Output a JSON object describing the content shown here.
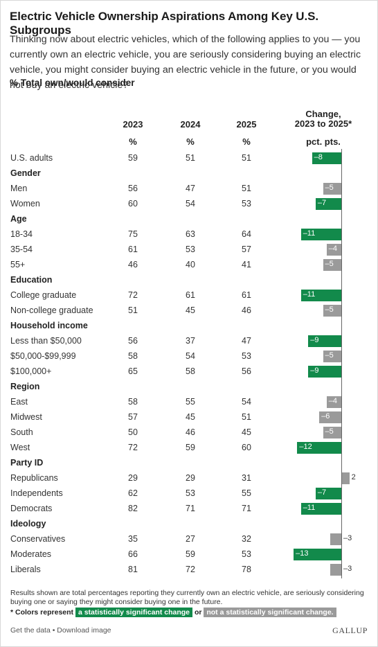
{
  "title": "Electric Vehicle Ownership Aspirations Among Key U.S. Subgroups",
  "question": "Thinking now about electric vehicles, which of the following applies to you — you currently own an electric vehicle, you are seriously considering buying an electric vehicle, you might consider buying an electric vehicle in the future, or you would not buy an electric vehicle?",
  "measure": "% Total own/would consider",
  "colors": {
    "significant": "#128a4b",
    "not_significant": "#9a9a9a"
  },
  "footnote": "Results shown are total percentages reporting they currently own an electric vehicle, are seriously considering buying one or saying they might consider buying one in the future.",
  "legend": {
    "prefix": "* Colors represent",
    "significant_label": "a statistically significant change",
    "joiner": "or",
    "not_significant_label": "not a statistically significant change."
  },
  "footer": {
    "links": "Get the data • Download image",
    "brand": "GALLUP"
  },
  "chart_data": {
    "type": "table",
    "columns": [
      "2023",
      "2024",
      "2025"
    ],
    "unit_row": [
      "%",
      "%",
      "%"
    ],
    "change_header": [
      "Change,",
      "2023 to 2025*"
    ],
    "change_unit": "pct. pts.",
    "rows": [
      {
        "label": "U.S. adults",
        "values": [
          59,
          51,
          51
        ],
        "change": -8,
        "change_label": "–8",
        "significant": true
      },
      {
        "group": "Gender"
      },
      {
        "label": "Men",
        "values": [
          56,
          47,
          51
        ],
        "change": -5,
        "change_label": "–5",
        "significant": false
      },
      {
        "label": "Women",
        "values": [
          60,
          54,
          53
        ],
        "change": -7,
        "change_label": "–7",
        "significant": true
      },
      {
        "group": "Age"
      },
      {
        "label": "18-34",
        "values": [
          75,
          63,
          64
        ],
        "change": -11,
        "change_label": "–11",
        "significant": true
      },
      {
        "label": "35-54",
        "values": [
          61,
          53,
          57
        ],
        "change": -4,
        "change_label": "–4",
        "significant": false
      },
      {
        "label": "55+",
        "values": [
          46,
          40,
          41
        ],
        "change": -5,
        "change_label": "–5",
        "significant": false
      },
      {
        "group": "Education"
      },
      {
        "label": "College graduate",
        "values": [
          72,
          61,
          61
        ],
        "change": -11,
        "change_label": "–11",
        "significant": true
      },
      {
        "label": "Non-college graduate",
        "values": [
          51,
          45,
          46
        ],
        "change": -5,
        "change_label": "–5",
        "significant": false
      },
      {
        "group": "Household income"
      },
      {
        "label": "Less than $50,000",
        "values": [
          56,
          37,
          47
        ],
        "change": -9,
        "change_label": "–9",
        "significant": true
      },
      {
        "label": "$50,000-$99,999",
        "values": [
          58,
          54,
          53
        ],
        "change": -5,
        "change_label": "–5",
        "significant": false
      },
      {
        "label": "$100,000+",
        "values": [
          65,
          58,
          56
        ],
        "change": -9,
        "change_label": "–9",
        "significant": true
      },
      {
        "group": "Region"
      },
      {
        "label": "East",
        "values": [
          58,
          55,
          54
        ],
        "change": -4,
        "change_label": "–4",
        "significant": false
      },
      {
        "label": "Midwest",
        "values": [
          57,
          45,
          51
        ],
        "change": -6,
        "change_label": "–6",
        "significant": false
      },
      {
        "label": "South",
        "values": [
          50,
          46,
          45
        ],
        "change": -5,
        "change_label": "–5",
        "significant": false
      },
      {
        "label": "West",
        "values": [
          72,
          59,
          60
        ],
        "change": -12,
        "change_label": "–12",
        "significant": true
      },
      {
        "group": "Party ID"
      },
      {
        "label": "Republicans",
        "values": [
          29,
          29,
          31
        ],
        "change": 2,
        "change_label": "2",
        "significant": false
      },
      {
        "label": "Independents",
        "values": [
          62,
          53,
          55
        ],
        "change": -7,
        "change_label": "–7",
        "significant": true
      },
      {
        "label": "Democrats",
        "values": [
          82,
          71,
          71
        ],
        "change": -11,
        "change_label": "–11",
        "significant": true
      },
      {
        "group": "Ideology"
      },
      {
        "label": "Conservatives",
        "values": [
          35,
          27,
          32
        ],
        "change": -3,
        "change_label": "–3",
        "significant": false
      },
      {
        "label": "Moderates",
        "values": [
          66,
          59,
          53
        ],
        "change": -13,
        "change_label": "–13",
        "significant": true
      },
      {
        "label": "Liberals",
        "values": [
          81,
          72,
          78
        ],
        "change": -3,
        "change_label": "–3",
        "significant": false
      }
    ]
  }
}
